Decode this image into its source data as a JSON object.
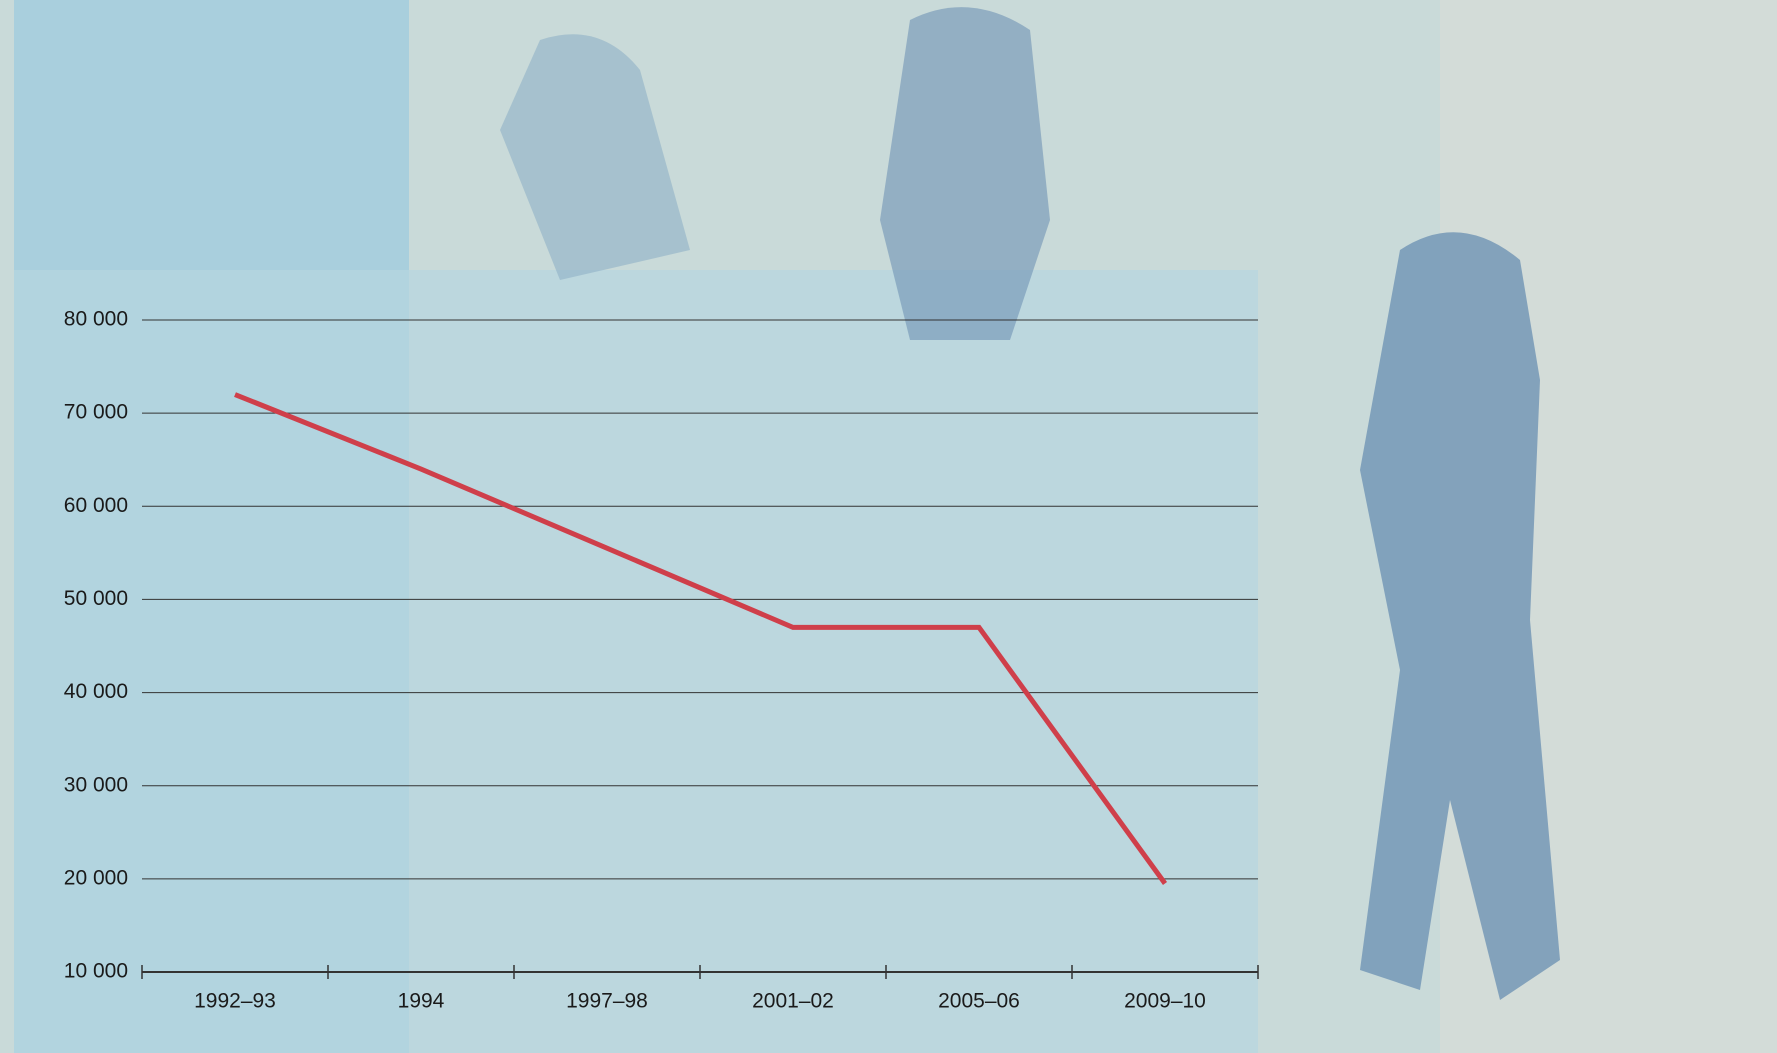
{
  "chart_data": {
    "type": "line",
    "categories": [
      "1992–93",
      "1994",
      "1997–98",
      "2001–02",
      "2005–06",
      "2009–10"
    ],
    "values": [
      72000,
      64000,
      55500,
      47000,
      47000,
      19500
    ],
    "color": "#cf3f4a",
    "ylim": [
      10000,
      80000
    ],
    "yticks": [
      {
        "value": 10000,
        "label": "10 000"
      },
      {
        "value": 20000,
        "label": "20 000"
      },
      {
        "value": 30000,
        "label": "30 000"
      },
      {
        "value": 40000,
        "label": "40 000"
      },
      {
        "value": 50000,
        "label": "50 000"
      },
      {
        "value": 60000,
        "label": "60 000"
      },
      {
        "value": 70000,
        "label": "70 000"
      },
      {
        "value": 80000,
        "label": "80 000"
      }
    ],
    "grid": true
  }
}
